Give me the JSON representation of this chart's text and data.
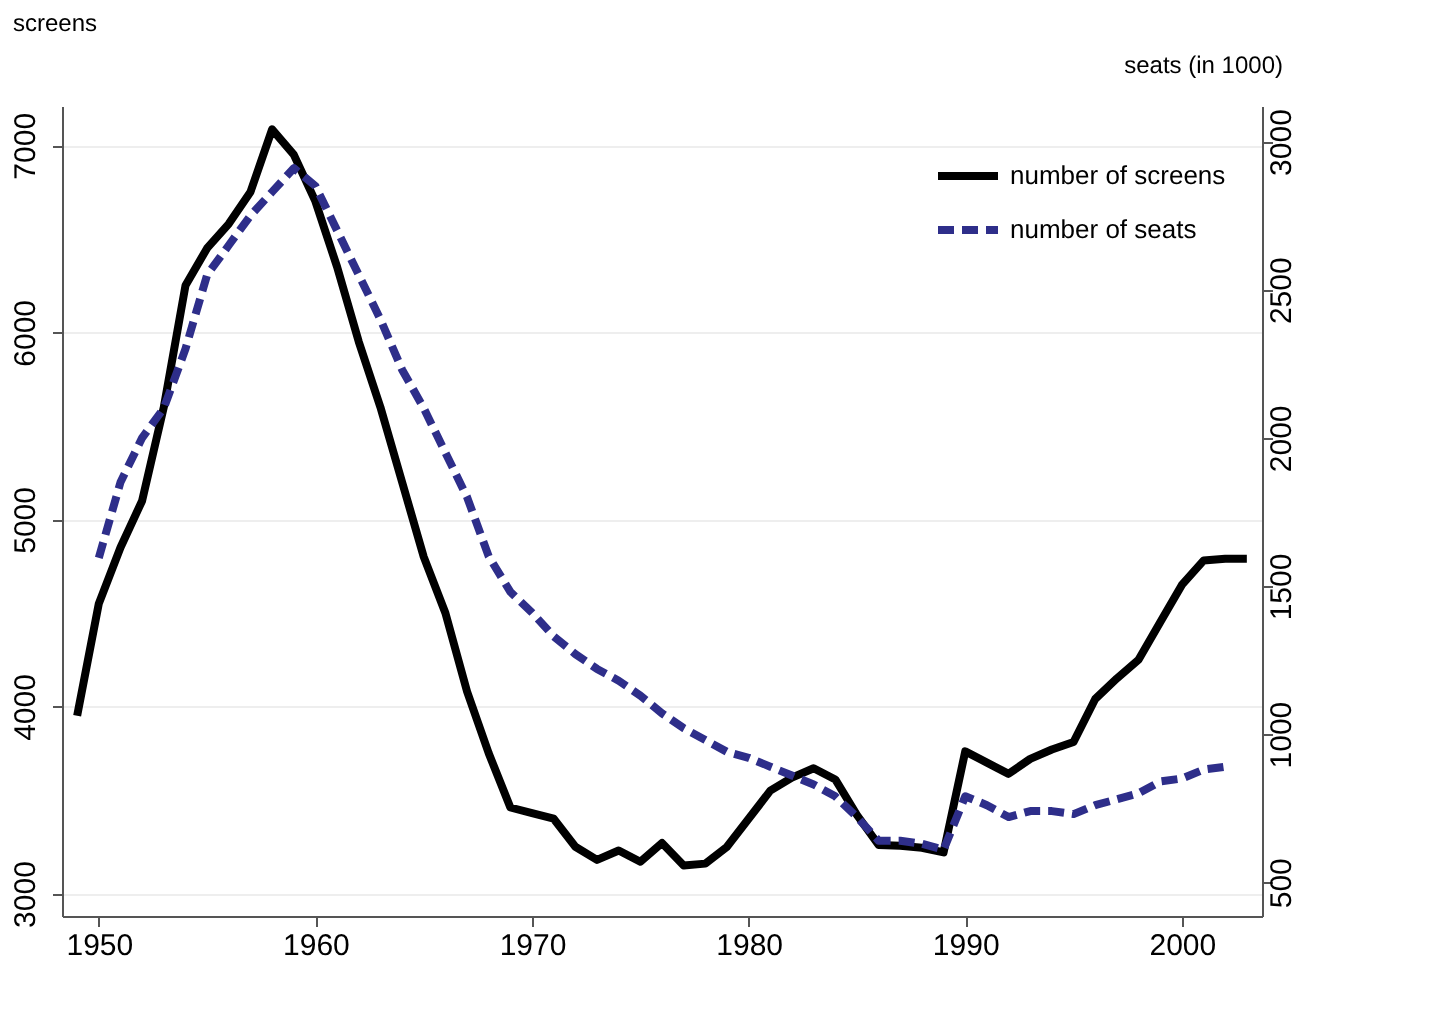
{
  "chart_data": {
    "type": "line",
    "ylabel": "screens",
    "y2label": "seats (in 1000)",
    "x": [
      1949,
      1950,
      1951,
      1952,
      1953,
      1954,
      1955,
      1956,
      1957,
      1958,
      1959,
      1960,
      1961,
      1962,
      1963,
      1964,
      1965,
      1966,
      1967,
      1968,
      1969,
      1970,
      1971,
      1972,
      1973,
      1974,
      1975,
      1976,
      1977,
      1978,
      1979,
      1980,
      1981,
      1982,
      1983,
      1984,
      1985,
      1986,
      1987,
      1988,
      1989,
      1990,
      1991,
      1992,
      1993,
      1994,
      1995,
      1996,
      1997,
      1998,
      1999,
      2000,
      2001,
      2002,
      2003
    ],
    "series": [
      {
        "name": "number of screens",
        "color": "#000000",
        "line_style": "solid",
        "values": [
          3950,
          4550,
          4850,
          5100,
          5600,
          6250,
          6450,
          6580,
          6750,
          7085,
          6950,
          6700,
          6350,
          5950,
          5600,
          5200,
          4800,
          4500,
          4080,
          3750,
          3460,
          3430,
          3400,
          3250,
          3180,
          3230,
          3170,
          3270,
          3150,
          3160,
          3250,
          3400,
          3550,
          3620,
          3670,
          3610,
          3420,
          3260,
          3255,
          3245,
          3220,
          3760,
          3700,
          3640,
          3720,
          3770,
          3810,
          4040,
          4150,
          4250,
          4450,
          4650,
          4780,
          4790,
          4790
        ]
      },
      {
        "name": "number of seats",
        "color": "#2e2e8a",
        "line_style": "dashed",
        "axis": "y2",
        "values": [
          null,
          1595,
          1850,
          2000,
          2100,
          2300,
          2550,
          2650,
          2750,
          2830,
          2910,
          2850,
          2700,
          2550,
          2400,
          2230,
          2100,
          1950,
          1800,
          1600,
          1480,
          1410,
          1330,
          1270,
          1220,
          1180,
          1130,
          1070,
          1020,
          980,
          940,
          920,
          890,
          860,
          830,
          790,
          720,
          640,
          640,
          630,
          610,
          790,
          760,
          720,
          740,
          740,
          730,
          760,
          780,
          800,
          840,
          850,
          880,
          890,
          null
        ]
      }
    ],
    "xlim": [
      1948.3,
      2003.7
    ],
    "xticks": [
      1950,
      1960,
      1970,
      1980,
      1990,
      2000
    ],
    "ylim": [
      2880,
      7210
    ],
    "yticks": [
      3000,
      4000,
      5000,
      6000,
      7000
    ],
    "y2lim": [
      386,
      3120
    ],
    "y2ticks": [
      500,
      1000,
      1500,
      2000,
      2500,
      3000
    ],
    "grid": "y",
    "legend": "top right",
    "marker": "none"
  }
}
